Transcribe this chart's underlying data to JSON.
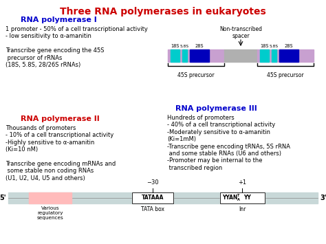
{
  "title": "Three RNA polymerases in eukaryotes",
  "title_color": "#CC0000",
  "title_fontsize": 10,
  "bg_color": "#FFFFFF",
  "pol1_header": "RNA polymerase I",
  "pol1_header_color": "#0000CC",
  "pol1_header_fontsize": 8,
  "pol1_text": "1 promoter - 50% of a cell transcriptional activity\n- low sensitivity to α-amanitin\n\nTranscribe gene encoding the 45S\n precursor of rRNAs\n(18S, 5.8S, 28/26S rRNAs)",
  "pol1_text_fontsize": 6.0,
  "pol2_header": "RNA polymerase II",
  "pol2_header_color": "#CC0000",
  "pol2_header_fontsize": 8,
  "pol2_text": "Thousands of promoters\n- 10% of a cell transcriptional activity\n-Highly sensitive to α-amanitin\n(Ki=10 nM)\n\nTranscribe gene encoding mRNAs and\n some stable non coding RNAs\n(U1, U2, U4, U5 and others)",
  "pol2_text_fontsize": 6.0,
  "pol3_header": "RNA polymerase III",
  "pol3_header_color": "#0000CC",
  "pol3_header_fontsize": 8,
  "pol3_text": "Hundreds of promoters\n- 40% of a cell transcriptional activity\n-Moderately sensitive to α-amanitin\n(Ki=1mM)\n-Transcribe gene encoding tRNAs, 5S rRNA\n and some stable RNAs (U6 and others)\n-Promoter may be internal to the\n transcribed region",
  "pol3_text_fontsize": 6.0,
  "col_purple": "#C8A0D0",
  "col_cyan": "#00CCCC",
  "col_blue": "#0000BB",
  "col_gray": "#B0B0B0",
  "col_pink": "#FFBBBB",
  "col_bar_bg": "#C8D8D8"
}
